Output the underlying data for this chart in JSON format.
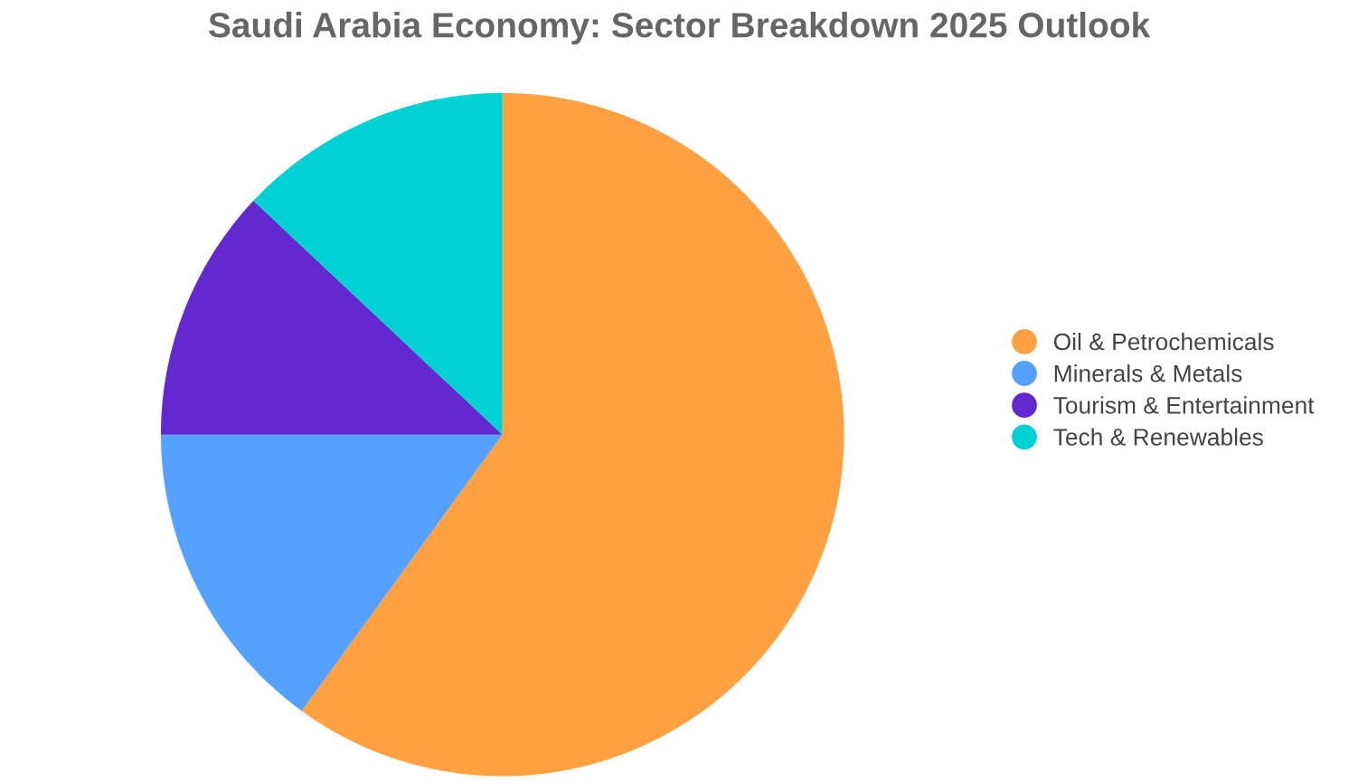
{
  "chart_data": {
    "type": "pie",
    "title": "Saudi Arabia Economy: Sector Breakdown 2025 Outlook",
    "categories": [
      "Oil & Petrochemicals",
      "Minerals & Metals",
      "Tourism & Entertainment",
      "Tech & Renewables"
    ],
    "values": [
      60,
      15,
      12,
      13
    ],
    "colors": [
      "#ffa041",
      "#55a1ff",
      "#6428d0",
      "#00d2d4"
    ],
    "legend": "right"
  }
}
